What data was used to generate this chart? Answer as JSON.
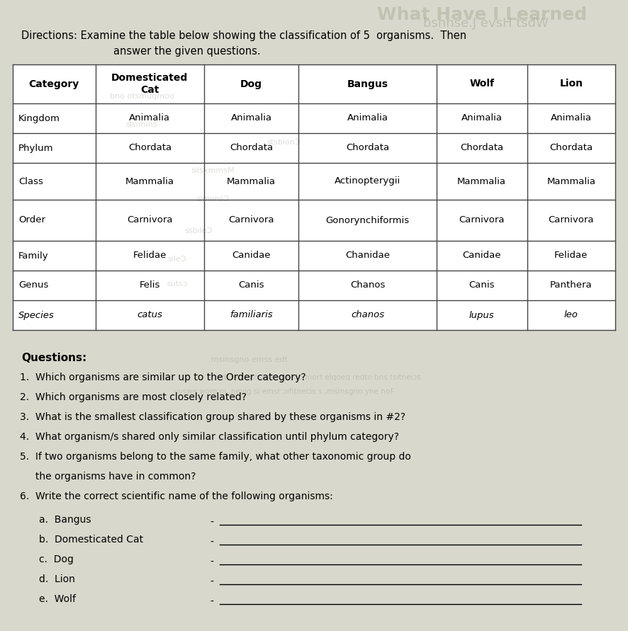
{
  "title_line1": "Directions: Examine the table below showing the classification of 5  organisms.  Then",
  "title_line2": "answer the given questions.",
  "columns": [
    "Category",
    "Domesticated\nCat",
    "Dog",
    "Bangus",
    "Wolf",
    "Lion"
  ],
  "rows": [
    [
      "Kingdom",
      "Animalia",
      "Animalia",
      "Animalia",
      "Animalia",
      "Animalia"
    ],
    [
      "Phylum",
      "Chordata",
      "Chordata",
      "Chordata",
      "Chordata",
      "Chordata"
    ],
    [
      "Class",
      "Mammalia",
      "Mammalia",
      "Actinopterygii",
      "Mammalia",
      "Mammalia"
    ],
    [
      "Order",
      "Carnivora",
      "Carnivora",
      "Gonorynchiformis",
      "Carnivora",
      "Carnivora"
    ],
    [
      "Family",
      "Felidae",
      "Canidae",
      "Chanidae",
      "Canidae",
      "Felidae"
    ],
    [
      "Genus",
      "Felis",
      "Canis",
      "Chanos",
      "Canis",
      "Panthera"
    ],
    [
      "Species",
      "catus",
      "familiaris",
      "chanos",
      "lupus",
      "leo"
    ]
  ],
  "questions_header": "Questions:",
  "questions": [
    "1.  Which organisms are similar up to the Order category?",
    "2.  Which organisms are most closely related?",
    "3.  What is the smallest classification group shared by these organisms in #2?",
    "4.  What organism/s shared only similar classification until phylum category?",
    "5.  If two organisms belong to the same family, what other taxonomic group do",
    "     the organisms have in common?",
    "6.  Write the correct scientific name of the following organisms:"
  ],
  "sub_questions": [
    "a.  Bangus",
    "b.  Domesticated Cat",
    "c.  Dog",
    "d.  Lion",
    "e.  Wolf"
  ],
  "bg_color": "#d8d8cc",
  "fig_width": 8.87,
  "fig_height": 8.91,
  "dpi": 100
}
